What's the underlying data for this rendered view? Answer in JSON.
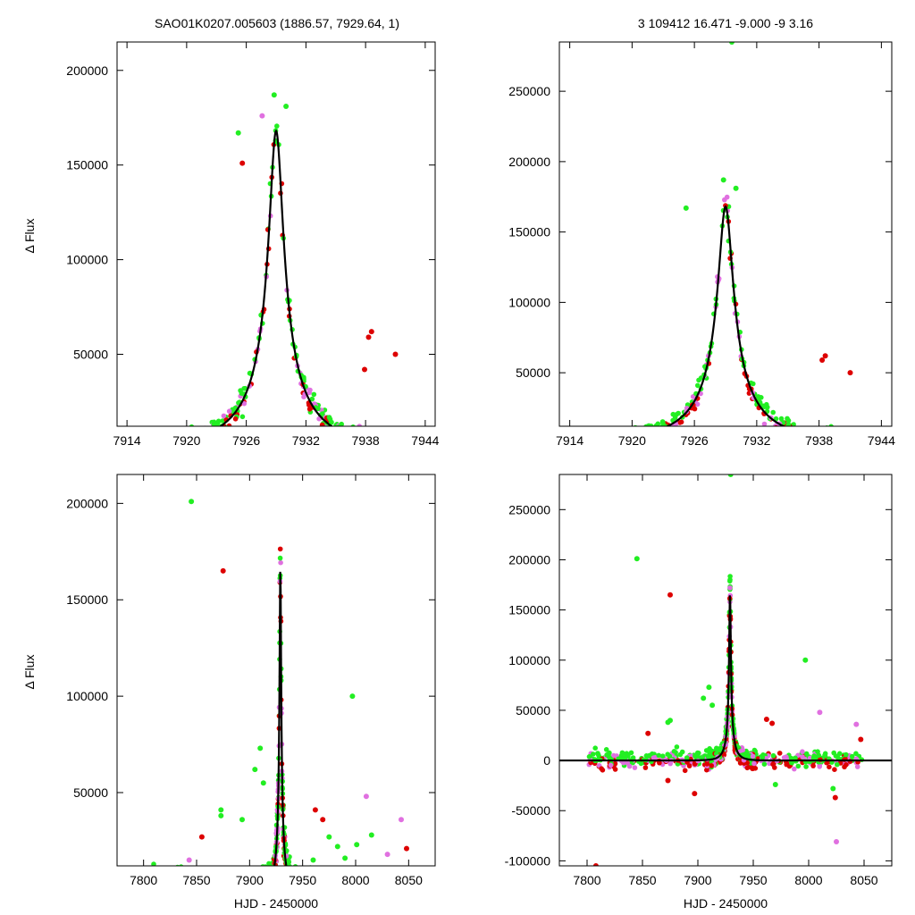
{
  "header": {
    "left_title": "SAO01K0207.005603 (1886.57, 7929.64,    1)",
    "right_title": "3   109412   16.471    -9.000   -9   3.16"
  },
  "colors": {
    "red": "#dd0000",
    "magenta": "#e070e0",
    "green": "#22ee22",
    "curve": "#000000"
  },
  "chart_data": [
    {
      "id": "top-left",
      "type": "scatter",
      "xlim": [
        7913,
        7945
      ],
      "ylim": [
        12000,
        215000
      ],
      "xticks": [
        7914,
        7920,
        7926,
        7932,
        7938,
        7944
      ],
      "yticks": [
        50000,
        100000,
        150000,
        200000
      ],
      "xlabel": "",
      "ylabel": "Δ Flux",
      "model": {
        "peak_time": 7929.0,
        "peak_flux": 168000,
        "tE": 9.0,
        "u0": 0.08,
        "base": 0
      },
      "outliers": [
        {
          "x": 7938.6,
          "y": 62000,
          "color": "red"
        },
        {
          "x": 7938.3,
          "y": 59000,
          "color": "red"
        },
        {
          "x": 7937.9,
          "y": 42000,
          "color": "red"
        },
        {
          "x": 7941.0,
          "y": 50000,
          "color": "red"
        },
        {
          "x": 7928.8,
          "y": 187000,
          "color": "green"
        },
        {
          "x": 7930.0,
          "y": 181000,
          "color": "green"
        },
        {
          "x": 7927.6,
          "y": 176000,
          "color": "magenta"
        },
        {
          "x": 7925.2,
          "y": 167000,
          "color": "green"
        },
        {
          "x": 7925.6,
          "y": 151000,
          "color": "red"
        }
      ]
    },
    {
      "id": "top-right",
      "type": "scatter",
      "xlim": [
        7913,
        7945
      ],
      "ylim": [
        12000,
        285000
      ],
      "xticks": [
        7914,
        7920,
        7926,
        7932,
        7938,
        7944
      ],
      "yticks": [
        50000,
        100000,
        150000,
        200000,
        250000
      ],
      "xlabel": "",
      "ylabel": "",
      "model": {
        "peak_time": 7929.0,
        "peak_flux": 168000,
        "tE": 9.0,
        "u0": 0.08,
        "base": 0
      },
      "outliers": [
        {
          "x": 7929.6,
          "y": 285000,
          "color": "green"
        },
        {
          "x": 7938.6,
          "y": 62000,
          "color": "red"
        },
        {
          "x": 7938.3,
          "y": 59000,
          "color": "red"
        },
        {
          "x": 7941.0,
          "y": 50000,
          "color": "red"
        },
        {
          "x": 7928.8,
          "y": 187000,
          "color": "green"
        },
        {
          "x": 7930.0,
          "y": 181000,
          "color": "green"
        },
        {
          "x": 7925.2,
          "y": 167000,
          "color": "green"
        }
      ]
    },
    {
      "id": "bottom-left",
      "type": "scatter",
      "xlim": [
        7775,
        8075
      ],
      "ylim": [
        12000,
        215000
      ],
      "xticks": [
        7800,
        7850,
        7900,
        7950,
        8000,
        8050
      ],
      "yticks": [
        50000,
        100000,
        150000,
        200000
      ],
      "xlabel": "HJD - 2450000",
      "ylabel": "Δ Flux",
      "model": {
        "peak_time": 7929.0,
        "peak_flux": 168000,
        "tE": 9.0,
        "u0": 0.08,
        "base": 0
      },
      "outliers": [
        {
          "x": 7845,
          "y": 201000,
          "color": "green"
        },
        {
          "x": 7875,
          "y": 165000,
          "color": "red"
        },
        {
          "x": 7997,
          "y": 100000,
          "color": "green"
        },
        {
          "x": 7910,
          "y": 73000,
          "color": "green"
        },
        {
          "x": 7905,
          "y": 62000,
          "color": "green"
        },
        {
          "x": 7913,
          "y": 55000,
          "color": "green"
        },
        {
          "x": 8010,
          "y": 48000,
          "color": "magenta"
        },
        {
          "x": 7962,
          "y": 41000,
          "color": "red"
        },
        {
          "x": 7969,
          "y": 36000,
          "color": "red"
        },
        {
          "x": 7873,
          "y": 41000,
          "color": "green"
        },
        {
          "x": 7873,
          "y": 38000,
          "color": "green"
        },
        {
          "x": 7855,
          "y": 27000,
          "color": "red"
        },
        {
          "x": 7893,
          "y": 36000,
          "color": "green"
        },
        {
          "x": 7975,
          "y": 27000,
          "color": "green"
        },
        {
          "x": 7983,
          "y": 22000,
          "color": "green"
        },
        {
          "x": 8001,
          "y": 23000,
          "color": "green"
        },
        {
          "x": 8015,
          "y": 28000,
          "color": "green"
        },
        {
          "x": 8043,
          "y": 36000,
          "color": "magenta"
        },
        {
          "x": 8048,
          "y": 21000,
          "color": "red"
        },
        {
          "x": 8030,
          "y": 18000,
          "color": "magenta"
        },
        {
          "x": 7843,
          "y": 15000,
          "color": "magenta"
        },
        {
          "x": 7990,
          "y": 16000,
          "color": "green"
        },
        {
          "x": 7960,
          "y": 15000,
          "color": "green"
        }
      ]
    },
    {
      "id": "bottom-right",
      "type": "scatter",
      "xlim": [
        7775,
        8075
      ],
      "ylim": [
        -105000,
        285000
      ],
      "xticks": [
        7800,
        7850,
        7900,
        7950,
        8000,
        8050
      ],
      "yticks": [
        -100000,
        -50000,
        0,
        50000,
        100000,
        150000,
        200000,
        250000
      ],
      "xlabel": "HJD - 2450000",
      "ylabel": "",
      "model": {
        "peak_time": 7929.0,
        "peak_flux": 168000,
        "tE": 9.0,
        "u0": 0.08,
        "base": 0
      },
      "outliers": [
        {
          "x": 7929.6,
          "y": 285000,
          "color": "green"
        },
        {
          "x": 7845,
          "y": 201000,
          "color": "green"
        },
        {
          "x": 7875,
          "y": 165000,
          "color": "red"
        },
        {
          "x": 7997,
          "y": 100000,
          "color": "green"
        },
        {
          "x": 7808,
          "y": -105000,
          "color": "red"
        },
        {
          "x": 8025,
          "y": -81000,
          "color": "magenta"
        },
        {
          "x": 8024,
          "y": -37000,
          "color": "red"
        },
        {
          "x": 8022,
          "y": -28000,
          "color": "green"
        },
        {
          "x": 7897,
          "y": -33000,
          "color": "red"
        },
        {
          "x": 7873,
          "y": -20000,
          "color": "red"
        },
        {
          "x": 7970,
          "y": -24000,
          "color": "green"
        },
        {
          "x": 7875,
          "y": 40000,
          "color": "green"
        },
        {
          "x": 7873,
          "y": 38000,
          "color": "green"
        },
        {
          "x": 7910,
          "y": 73000,
          "color": "green"
        },
        {
          "x": 7905,
          "y": 62000,
          "color": "green"
        },
        {
          "x": 7913,
          "y": 55000,
          "color": "green"
        },
        {
          "x": 7962,
          "y": 41000,
          "color": "red"
        },
        {
          "x": 7967,
          "y": 37000,
          "color": "red"
        },
        {
          "x": 7855,
          "y": 27000,
          "color": "red"
        },
        {
          "x": 8047,
          "y": 21000,
          "color": "red"
        },
        {
          "x": 8043,
          "y": 36000,
          "color": "magenta"
        },
        {
          "x": 8010,
          "y": 48000,
          "color": "magenta"
        }
      ]
    }
  ]
}
